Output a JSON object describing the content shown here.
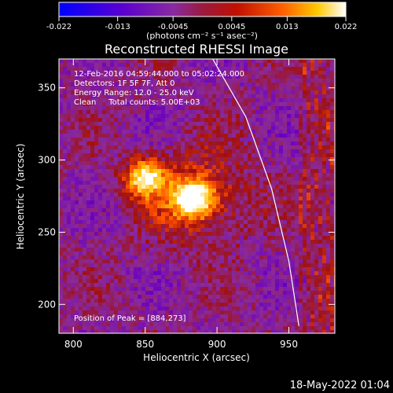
{
  "chart_data": {
    "type": "heatmap",
    "title": "Reconstructed RHESSI Image",
    "colorbar": {
      "ticks": [
        "-0.022",
        "-0.013",
        "-0.0045",
        "0.0045",
        "0.013",
        "0.022"
      ],
      "tick_values": [
        -0.022,
        -0.013,
        -0.0045,
        0.0045,
        0.013,
        0.022
      ],
      "range": [
        -0.022,
        0.022
      ],
      "label": "(photons cm⁻² s⁻¹ asec⁻²)",
      "colors": [
        "#0000ff",
        "#6a00c0",
        "#8a2a9a",
        "#a01010",
        "#ff5000",
        "#ffc000",
        "#ffffff"
      ]
    },
    "xlabel": "Heliocentric X (arcsec)",
    "ylabel": "Heliocentric Y (arcsec)",
    "x_ticks": [
      800,
      850,
      900,
      950
    ],
    "y_ticks": [
      200,
      250,
      300,
      350
    ],
    "xlim": [
      790,
      982
    ],
    "ylim": [
      180,
      370
    ],
    "annotations": [
      "12-Feb-2016 04:59:44.000 to 05:02:24.000",
      "Detectors: 1F 5F 7F, Att 0",
      "Energy Range: 12.0 - 25.0 keV",
      "Clean     Total counts: 5.00E+03"
    ],
    "peak_label": "Position of Peak = [884,273]",
    "peak": [
      884,
      273
    ],
    "sources": [
      {
        "x": 884,
        "y": 273,
        "amplitude": 1.0
      },
      {
        "x": 850,
        "y": 288,
        "amplitude": 0.9
      }
    ],
    "limb_curve": [
      [
        897,
        370
      ],
      [
        920,
        330
      ],
      [
        938,
        280
      ],
      [
        950,
        230
      ],
      [
        957,
        185
      ]
    ]
  },
  "footer": {
    "date": "18-May-2022 01:04"
  }
}
